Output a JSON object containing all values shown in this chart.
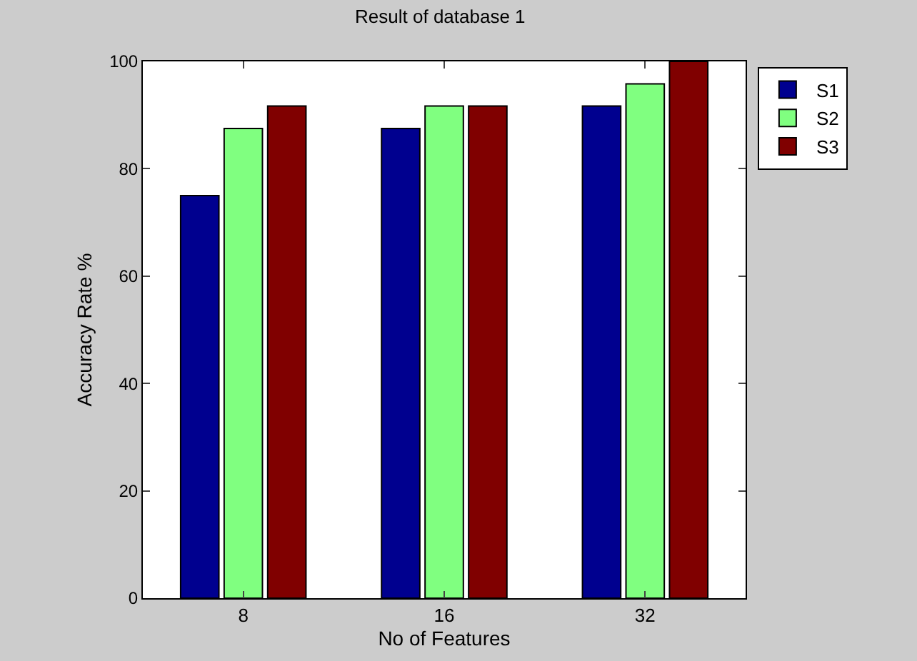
{
  "chart_data": {
    "type": "bar",
    "title": "Result of database 1",
    "xlabel": "No of Features",
    "ylabel": "Accuracy Rate %",
    "categories": [
      "8",
      "16",
      "32"
    ],
    "series": [
      {
        "name": "S1",
        "color": "#00008f",
        "values": [
          75,
          87.5,
          91.7
        ]
      },
      {
        "name": "S2",
        "color": "#80ff80",
        "values": [
          87.5,
          91.7,
          95.8
        ]
      },
      {
        "name": "S3",
        "color": "#800000",
        "values": [
          91.7,
          91.7,
          100
        ]
      }
    ],
    "ylim": [
      0,
      100
    ],
    "yticks": [
      0,
      20,
      40,
      60,
      80,
      100
    ],
    "legend": "top right"
  }
}
